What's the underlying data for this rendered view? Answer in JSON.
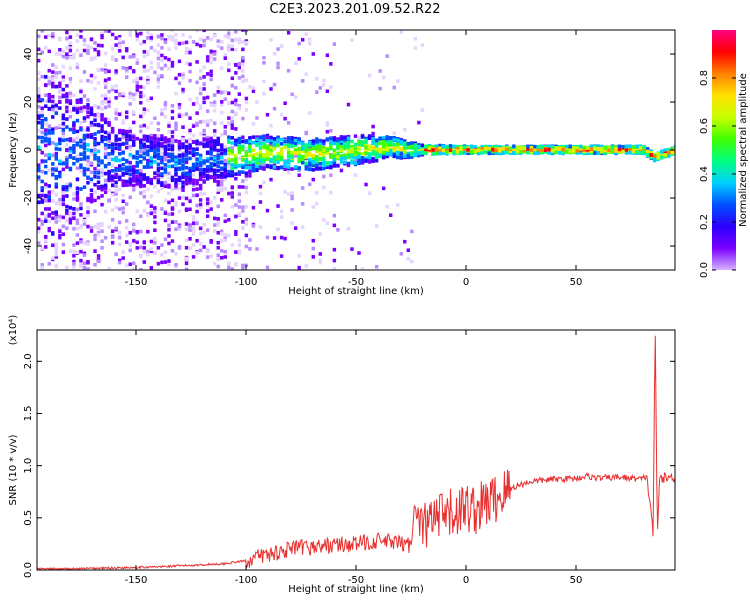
{
  "title": "C2E3.2023.201.09.52.R22",
  "chart_data": [
    {
      "type": "heatmap",
      "xlabel": "Height of straight line (km)",
      "ylabel": "Frequency (Hz)",
      "xlim": [
        -195,
        95
      ],
      "ylim": [
        -50,
        50
      ],
      "x_ticks": [
        -150,
        -100,
        -50,
        0,
        50
      ],
      "y_ticks": [
        -40,
        -20,
        0,
        20,
        40
      ],
      "colorbar": {
        "label": "Normalized spectral amplitude",
        "range": [
          0,
          1
        ],
        "ticks": [
          "0.0",
          "0.2",
          "0.4",
          "0.6",
          "0.8"
        ],
        "colormap": [
          "#ffffff",
          "#d6b4ff",
          "#7a00ff",
          "#2b00ff",
          "#0050ff",
          "#00d0ff",
          "#00ff80",
          "#40ff00",
          "#c8ff00",
          "#ffe000",
          "#ff8000",
          "#ff0000",
          "#ff0080"
        ]
      },
      "ridge": {
        "center_freq_hz": [
          [
            -170,
            -2
          ],
          [
            -150,
            -4
          ],
          [
            -130,
            -6
          ],
          [
            -110,
            -3
          ],
          [
            -90,
            -1
          ],
          [
            -70,
            -2
          ],
          [
            -50,
            0
          ],
          [
            -35,
            1
          ],
          [
            -25,
            0
          ],
          [
            0,
            0
          ],
          [
            50,
            0
          ],
          [
            80,
            0
          ],
          [
            85,
            -3
          ],
          [
            95,
            0
          ]
        ],
        "spread_hz": [
          [
            -195,
            40
          ],
          [
            -160,
            12
          ],
          [
            -120,
            9
          ],
          [
            -90,
            7
          ],
          [
            -50,
            6
          ],
          [
            -30,
            4
          ],
          [
            -20,
            2
          ],
          [
            0,
            1.5
          ],
          [
            95,
            1.5
          ]
        ]
      },
      "grid": false
    },
    {
      "type": "line",
      "xlabel": "Height of straight line (km)",
      "ylabel": "SNR (10 * v/v)",
      "y_multiplier": "(x10⁴)",
      "xlim": [
        -195,
        95
      ],
      "ylim": [
        0,
        2.3
      ],
      "x_ticks": [
        -150,
        -100,
        -50,
        0,
        50
      ],
      "y_ticks": [
        "0.0",
        "0.5",
        "1.0",
        "1.5",
        "2.0"
      ],
      "line_color": "#e83030",
      "series": [
        {
          "x": [
            -195,
            -180,
            -160,
            -140,
            -120,
            -110,
            -100,
            -95,
            -90,
            -80,
            -70,
            -60,
            -50,
            -40,
            -35,
            -30,
            -25,
            -23,
            -22,
            -20,
            -15,
            -10,
            -5,
            0,
            5,
            10,
            15,
            20,
            25,
            30,
            40,
            50,
            55,
            60,
            70,
            75,
            80,
            82,
            84,
            85,
            86,
            87,
            88,
            90,
            95
          ],
          "y": [
            0.01,
            0.01,
            0.02,
            0.03,
            0.05,
            0.06,
            0.09,
            0.12,
            0.15,
            0.2,
            0.22,
            0.24,
            0.25,
            0.28,
            0.27,
            0.25,
            0.24,
            0.7,
            0.45,
            0.4,
            0.48,
            0.5,
            0.55,
            0.6,
            0.58,
            0.65,
            0.7,
            0.78,
            0.82,
            0.85,
            0.87,
            0.88,
            0.9,
            0.88,
            0.89,
            0.88,
            0.87,
            0.9,
            0.6,
            0.35,
            2.3,
            0.3,
            0.9,
            0.88,
            0.89
          ]
        }
      ],
      "grid": false
    }
  ]
}
